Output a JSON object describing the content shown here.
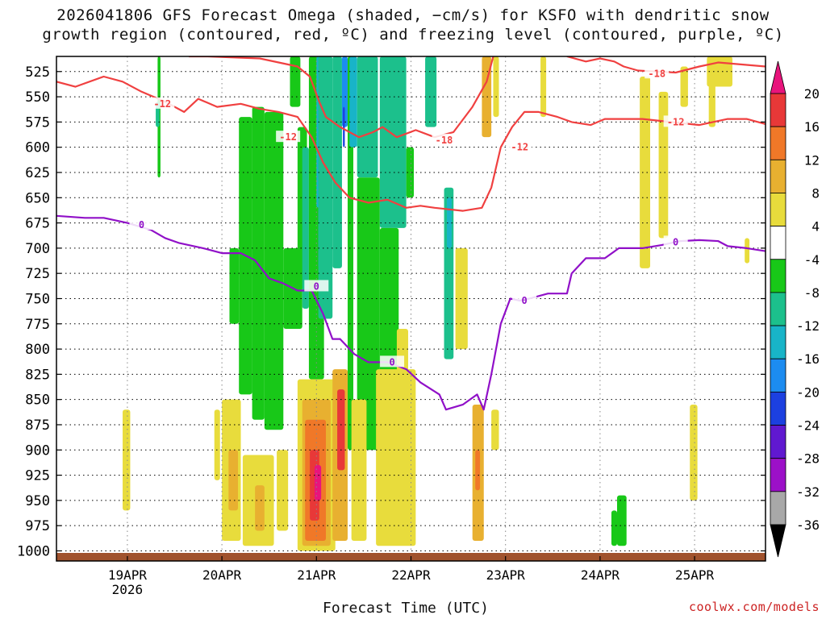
{
  "header": {
    "title_line1": "2026041806 GFS Forecast Omega (shaded, −cm/s) for KSFO with dendritic snow",
    "title_line2": "growth region (contoured, red, ºC) and freezing level (contoured, purple, ºC)"
  },
  "footer": {
    "xlabel": "Forecast Time (UTC)",
    "credit": "coolwx.com/models"
  },
  "chart_data": {
    "type": "heatmap",
    "title": "2026041806 GFS Forecast Omega (shaded, −cm/s) for KSFO with dendritic snow growth region (contoured, red, ºC) and freezing level (contoured, purple, ºC)",
    "xlabel": "Forecast Time (UTC)",
    "ylabel": "",
    "x_unit": "days since 2026-04-18 06Z",
    "xlim": [
      0,
      7.5
    ],
    "ylim": [
      1010,
      510
    ],
    "y_ticks": [
      525,
      550,
      575,
      600,
      625,
      650,
      675,
      700,
      725,
      750,
      775,
      800,
      825,
      850,
      875,
      900,
      925,
      950,
      975,
      1000
    ],
    "x_ticks": [
      {
        "x": 0.75,
        "label": "19APR",
        "sub": "2026"
      },
      {
        "x": 1.75,
        "label": "20APR",
        "sub": ""
      },
      {
        "x": 2.75,
        "label": "21APR",
        "sub": ""
      },
      {
        "x": 3.75,
        "label": "22APR",
        "sub": ""
      },
      {
        "x": 4.75,
        "label": "23APR",
        "sub": ""
      },
      {
        "x": 5.75,
        "label": "24APR",
        "sub": ""
      },
      {
        "x": 6.75,
        "label": "25APR",
        "sub": ""
      }
    ],
    "colorbar": {
      "ticks": [
        20,
        16,
        12,
        8,
        4,
        -4,
        -8,
        -12,
        -16,
        -20,
        -24,
        -28,
        -32,
        -36
      ],
      "bands": [
        {
          "from": 16,
          "to": 20,
          "color": "#e83838"
        },
        {
          "from": 12,
          "to": 16,
          "color": "#f07828"
        },
        {
          "from": 8,
          "to": 12,
          "color": "#e8b030"
        },
        {
          "from": 4,
          "to": 8,
          "color": "#e8dc3c"
        },
        {
          "from": -4,
          "to": 4,
          "color": "#ffffff"
        },
        {
          "from": -8,
          "to": -4,
          "color": "#18c818"
        },
        {
          "from": -12,
          "to": -8,
          "color": "#1cc08c"
        },
        {
          "from": -16,
          "to": -12,
          "color": "#18b4c8"
        },
        {
          "from": -20,
          "to": -16,
          "color": "#1c8cf0"
        },
        {
          "from": -24,
          "to": -20,
          "color": "#1c40e0"
        },
        {
          "from": -28,
          "to": -24,
          "color": "#6018d0"
        },
        {
          "from": -32,
          "to": -28,
          "color": "#9c10c8"
        },
        {
          "from": -36,
          "to": -32,
          "color": "#a8a8a8"
        }
      ],
      "top_arrow_color": "#e8147c",
      "bottom_arrow_color": "#000000"
    },
    "omega_cells": [
      {
        "x0": 1.07,
        "x1": 1.1,
        "p0": 510,
        "p1": 630,
        "value": -6
      },
      {
        "x0": 1.05,
        "x1": 1.09,
        "p0": 555,
        "p1": 580,
        "value": -9
      },
      {
        "x0": 1.83,
        "x1": 1.93,
        "p0": 700,
        "p1": 775,
        "value": -6
      },
      {
        "x0": 1.93,
        "x1": 2.07,
        "p0": 570,
        "p1": 845,
        "value": -6
      },
      {
        "x0": 2.07,
        "x1": 2.2,
        "p0": 560,
        "p1": 870,
        "value": -6
      },
      {
        "x0": 2.2,
        "x1": 2.4,
        "p0": 565,
        "p1": 880,
        "value": -6
      },
      {
        "x0": 2.4,
        "x1": 2.6,
        "p0": 700,
        "p1": 780,
        "value": -6
      },
      {
        "x0": 2.47,
        "x1": 2.58,
        "p0": 510,
        "p1": 560,
        "value": -5
      },
      {
        "x0": 2.55,
        "x1": 2.65,
        "p0": 580,
        "p1": 740,
        "value": -6
      },
      {
        "x0": 2.6,
        "x1": 2.67,
        "p0": 600,
        "p1": 760,
        "value": -9
      },
      {
        "x0": 2.67,
        "x1": 2.83,
        "p0": 510,
        "p1": 830,
        "value": -6
      },
      {
        "x0": 2.75,
        "x1": 2.85,
        "p0": 510,
        "p1": 660,
        "value": -14
      },
      {
        "x0": 2.77,
        "x1": 2.82,
        "p0": 560,
        "p1": 720,
        "value": -18
      },
      {
        "x0": 2.8,
        "x1": 2.85,
        "p0": 600,
        "p1": 700,
        "value": -22
      },
      {
        "x0": 2.77,
        "x1": 2.92,
        "p0": 510,
        "p1": 770,
        "value": -10
      },
      {
        "x0": 2.92,
        "x1": 3.02,
        "p0": 510,
        "p1": 720,
        "value": -10
      },
      {
        "x0": 3.02,
        "x1": 3.08,
        "p0": 510,
        "p1": 580,
        "value": -18
      },
      {
        "x0": 3.03,
        "x1": 3.05,
        "p0": 560,
        "p1": 600,
        "value": -22
      },
      {
        "x0": 3.08,
        "x1": 3.14,
        "p0": 510,
        "p1": 900,
        "value": -6
      },
      {
        "x0": 3.1,
        "x1": 3.18,
        "p0": 510,
        "p1": 600,
        "value": -16
      },
      {
        "x0": 3.18,
        "x1": 3.4,
        "p0": 510,
        "p1": 630,
        "value": -10
      },
      {
        "x0": 3.18,
        "x1": 3.42,
        "p0": 630,
        "p1": 900,
        "value": -6
      },
      {
        "x0": 3.42,
        "x1": 3.7,
        "p0": 510,
        "p1": 680,
        "value": -10
      },
      {
        "x0": 3.42,
        "x1": 3.62,
        "p0": 680,
        "p1": 850,
        "value": -6
      },
      {
        "x0": 3.7,
        "x1": 3.78,
        "p0": 600,
        "p1": 650,
        "value": -6
      },
      {
        "x0": 3.9,
        "x1": 4.02,
        "p0": 510,
        "p1": 580,
        "value": -9
      },
      {
        "x0": 4.1,
        "x1": 4.2,
        "p0": 640,
        "p1": 810,
        "value": -9
      },
      {
        "x0": 4.13,
        "x1": 4.18,
        "p0": 650,
        "p1": 700,
        "value": -14
      },
      {
        "x0": 5.93,
        "x1": 6.03,
        "p0": 945,
        "p1": 995,
        "value": -6
      },
      {
        "x0": 5.87,
        "x1": 5.93,
        "p0": 960,
        "p1": 995,
        "value": -5
      }
    ],
    "omega_positive_cells": [
      {
        "x0": 0.7,
        "x1": 0.78,
        "p0": 860,
        "p1": 960,
        "value": 5
      },
      {
        "x0": 1.67,
        "x1": 1.73,
        "p0": 860,
        "p1": 930,
        "value": 5
      },
      {
        "x0": 1.75,
        "x1": 1.95,
        "p0": 850,
        "p1": 990,
        "value": 5
      },
      {
        "x0": 1.82,
        "x1": 1.92,
        "p0": 900,
        "p1": 960,
        "value": 9
      },
      {
        "x0": 1.97,
        "x1": 2.3,
        "p0": 905,
        "p1": 995,
        "value": 5
      },
      {
        "x0": 2.1,
        "x1": 2.2,
        "p0": 935,
        "p1": 980,
        "value": 9
      },
      {
        "x0": 2.33,
        "x1": 2.45,
        "p0": 900,
        "p1": 980,
        "value": 5
      },
      {
        "x0": 2.55,
        "x1": 2.95,
        "p0": 830,
        "p1": 1000,
        "value": 5
      },
      {
        "x0": 2.6,
        "x1": 2.9,
        "p0": 850,
        "p1": 995,
        "value": 9
      },
      {
        "x0": 2.63,
        "x1": 2.85,
        "p0": 870,
        "p1": 990,
        "value": 13
      },
      {
        "x0": 2.68,
        "x1": 2.78,
        "p0": 900,
        "p1": 970,
        "value": 17
      },
      {
        "x0": 2.73,
        "x1": 2.8,
        "p0": 915,
        "p1": 950,
        "value": 21
      },
      {
        "x0": 2.92,
        "x1": 3.08,
        "p0": 820,
        "p1": 990,
        "value": 9
      },
      {
        "x0": 2.97,
        "x1": 3.05,
        "p0": 840,
        "p1": 920,
        "value": 16
      },
      {
        "x0": 3.12,
        "x1": 3.28,
        "p0": 850,
        "p1": 990,
        "value": 5
      },
      {
        "x0": 3.38,
        "x1": 3.8,
        "p0": 820,
        "p1": 995,
        "value": 5
      },
      {
        "x0": 3.6,
        "x1": 3.72,
        "p0": 780,
        "p1": 900,
        "value": 5
      },
      {
        "x0": 4.4,
        "x1": 4.52,
        "p0": 855,
        "p1": 990,
        "value": 9
      },
      {
        "x0": 4.43,
        "x1": 4.48,
        "p0": 900,
        "p1": 940,
        "value": 14
      },
      {
        "x0": 4.6,
        "x1": 4.68,
        "p0": 860,
        "p1": 900,
        "value": 5
      },
      {
        "x0": 4.5,
        "x1": 4.6,
        "p0": 510,
        "p1": 590,
        "value": 9
      },
      {
        "x0": 4.62,
        "x1": 4.68,
        "p0": 510,
        "p1": 570,
        "value": 5
      },
      {
        "x0": 4.22,
        "x1": 4.35,
        "p0": 700,
        "p1": 800,
        "value": 5
      },
      {
        "x0": 5.12,
        "x1": 5.18,
        "p0": 510,
        "p1": 570,
        "value": 5
      },
      {
        "x0": 6.17,
        "x1": 6.28,
        "p0": 530,
        "p1": 720,
        "value": 5
      },
      {
        "x0": 6.37,
        "x1": 6.47,
        "p0": 545,
        "p1": 690,
        "value": 5
      },
      {
        "x0": 6.6,
        "x1": 6.68,
        "p0": 520,
        "p1": 560,
        "value": 5
      },
      {
        "x0": 6.7,
        "x1": 6.78,
        "p0": 855,
        "p1": 950,
        "value": 5
      },
      {
        "x0": 6.88,
        "x1": 7.15,
        "p0": 510,
        "p1": 540,
        "value": 5
      },
      {
        "x0": 6.9,
        "x1": 6.97,
        "p0": 530,
        "p1": 580,
        "value": 5
      },
      {
        "x0": 7.28,
        "x1": 7.33,
        "p0": 690,
        "p1": 715,
        "value": 5
      }
    ],
    "contours": {
      "dgz_minus12": {
        "color": "#f04040",
        "label": "-12",
        "points": [
          [
            0,
            535
          ],
          [
            0.2,
            540
          ],
          [
            0.5,
            530
          ],
          [
            0.7,
            535
          ],
          [
            0.9,
            545
          ],
          [
            1.15,
            555
          ],
          [
            1.35,
            565
          ],
          [
            1.5,
            552
          ],
          [
            1.7,
            560
          ],
          [
            1.95,
            557
          ],
          [
            2.15,
            562
          ],
          [
            2.35,
            565
          ],
          [
            2.55,
            570
          ],
          [
            2.7,
            590
          ],
          [
            2.82,
            615
          ],
          [
            2.95,
            635
          ],
          [
            3.1,
            650
          ],
          [
            3.3,
            655
          ],
          [
            3.5,
            652
          ],
          [
            3.7,
            660
          ],
          [
            3.85,
            658
          ],
          [
            4.0,
            660
          ],
          [
            4.3,
            663
          ],
          [
            4.5,
            660
          ],
          [
            4.6,
            640
          ],
          [
            4.7,
            600
          ],
          [
            4.82,
            580
          ],
          [
            4.95,
            565
          ],
          [
            5.1,
            565
          ],
          [
            5.3,
            570
          ],
          [
            5.45,
            575
          ],
          [
            5.65,
            578
          ],
          [
            5.8,
            572
          ],
          [
            6.2,
            572
          ],
          [
            6.5,
            575
          ],
          [
            6.8,
            578
          ],
          [
            7.1,
            572
          ],
          [
            7.3,
            572
          ],
          [
            7.5,
            577
          ]
        ],
        "label_at": [
          [
            1.12,
            557
          ],
          [
            2.45,
            590
          ],
          [
            4.9,
            600
          ],
          [
            6.55,
            575
          ]
        ]
      },
      "dgz_minus18": {
        "color": "#f04040",
        "label": "-18",
        "points": [
          [
            1.4,
            510
          ],
          [
            1.6,
            510
          ],
          [
            2.15,
            512
          ],
          [
            2.55,
            520
          ],
          [
            2.68,
            530
          ],
          [
            2.78,
            555
          ],
          [
            2.85,
            570
          ],
          [
            3.0,
            580
          ],
          [
            3.2,
            590
          ],
          [
            3.35,
            585
          ],
          [
            3.45,
            580
          ],
          [
            3.6,
            590
          ],
          [
            3.8,
            583
          ],
          [
            4.0,
            590
          ],
          [
            4.2,
            585
          ],
          [
            4.4,
            560
          ],
          [
            4.55,
            535
          ],
          [
            4.62,
            510
          ]
        ],
        "label_at": [
          [
            4.1,
            593
          ]
        ]
      },
      "dgz_minus18_right": {
        "color": "#f04040",
        "label": "-18",
        "points": [
          [
            5.4,
            510
          ],
          [
            5.6,
            515
          ],
          [
            5.75,
            512
          ],
          [
            5.9,
            515
          ],
          [
            6.0,
            520
          ],
          [
            6.15,
            524
          ],
          [
            6.35,
            525
          ],
          [
            6.55,
            526
          ],
          [
            6.8,
            520
          ],
          [
            7.0,
            516
          ],
          [
            7.25,
            518
          ],
          [
            7.5,
            520
          ]
        ],
        "label_at": [
          [
            6.35,
            527
          ]
        ]
      },
      "freezing_level": {
        "color": "#9010c8",
        "label": "0",
        "points": [
          [
            0,
            668
          ],
          [
            0.3,
            670
          ],
          [
            0.5,
            670
          ],
          [
            0.75,
            675
          ],
          [
            1.0,
            682
          ],
          [
            1.15,
            690
          ],
          [
            1.3,
            695
          ],
          [
            1.55,
            700
          ],
          [
            1.75,
            705
          ],
          [
            1.95,
            705
          ],
          [
            2.1,
            712
          ],
          [
            2.25,
            730
          ],
          [
            2.4,
            735
          ],
          [
            2.55,
            742
          ],
          [
            2.7,
            742
          ],
          [
            2.82,
            765
          ],
          [
            2.92,
            790
          ],
          [
            3.0,
            790
          ],
          [
            3.15,
            805
          ],
          [
            3.3,
            813
          ],
          [
            3.5,
            813
          ],
          [
            3.7,
            820
          ],
          [
            3.85,
            833
          ],
          [
            4.05,
            845
          ],
          [
            4.12,
            860
          ],
          [
            4.3,
            855
          ],
          [
            4.45,
            845
          ],
          [
            4.52,
            860
          ],
          [
            4.6,
            825
          ],
          [
            4.7,
            775
          ],
          [
            4.8,
            750
          ],
          [
            4.9,
            752
          ],
          [
            5.0,
            750
          ],
          [
            5.2,
            745
          ],
          [
            5.4,
            745
          ],
          [
            5.45,
            725
          ],
          [
            5.6,
            710
          ],
          [
            5.8,
            710
          ],
          [
            5.95,
            700
          ],
          [
            6.2,
            700
          ],
          [
            6.4,
            697
          ],
          [
            6.6,
            693
          ],
          [
            6.8,
            692
          ],
          [
            7.0,
            693
          ],
          [
            7.1,
            698
          ],
          [
            7.3,
            700
          ],
          [
            7.5,
            703
          ]
        ],
        "label_at": [
          [
            0.9,
            677
          ],
          [
            2.75,
            738
          ],
          [
            3.55,
            813
          ],
          [
            4.95,
            752
          ],
          [
            6.55,
            694
          ]
        ]
      }
    },
    "terrain": {
      "color": "#a0522d",
      "top": 1002,
      "bottom": 1010
    }
  }
}
